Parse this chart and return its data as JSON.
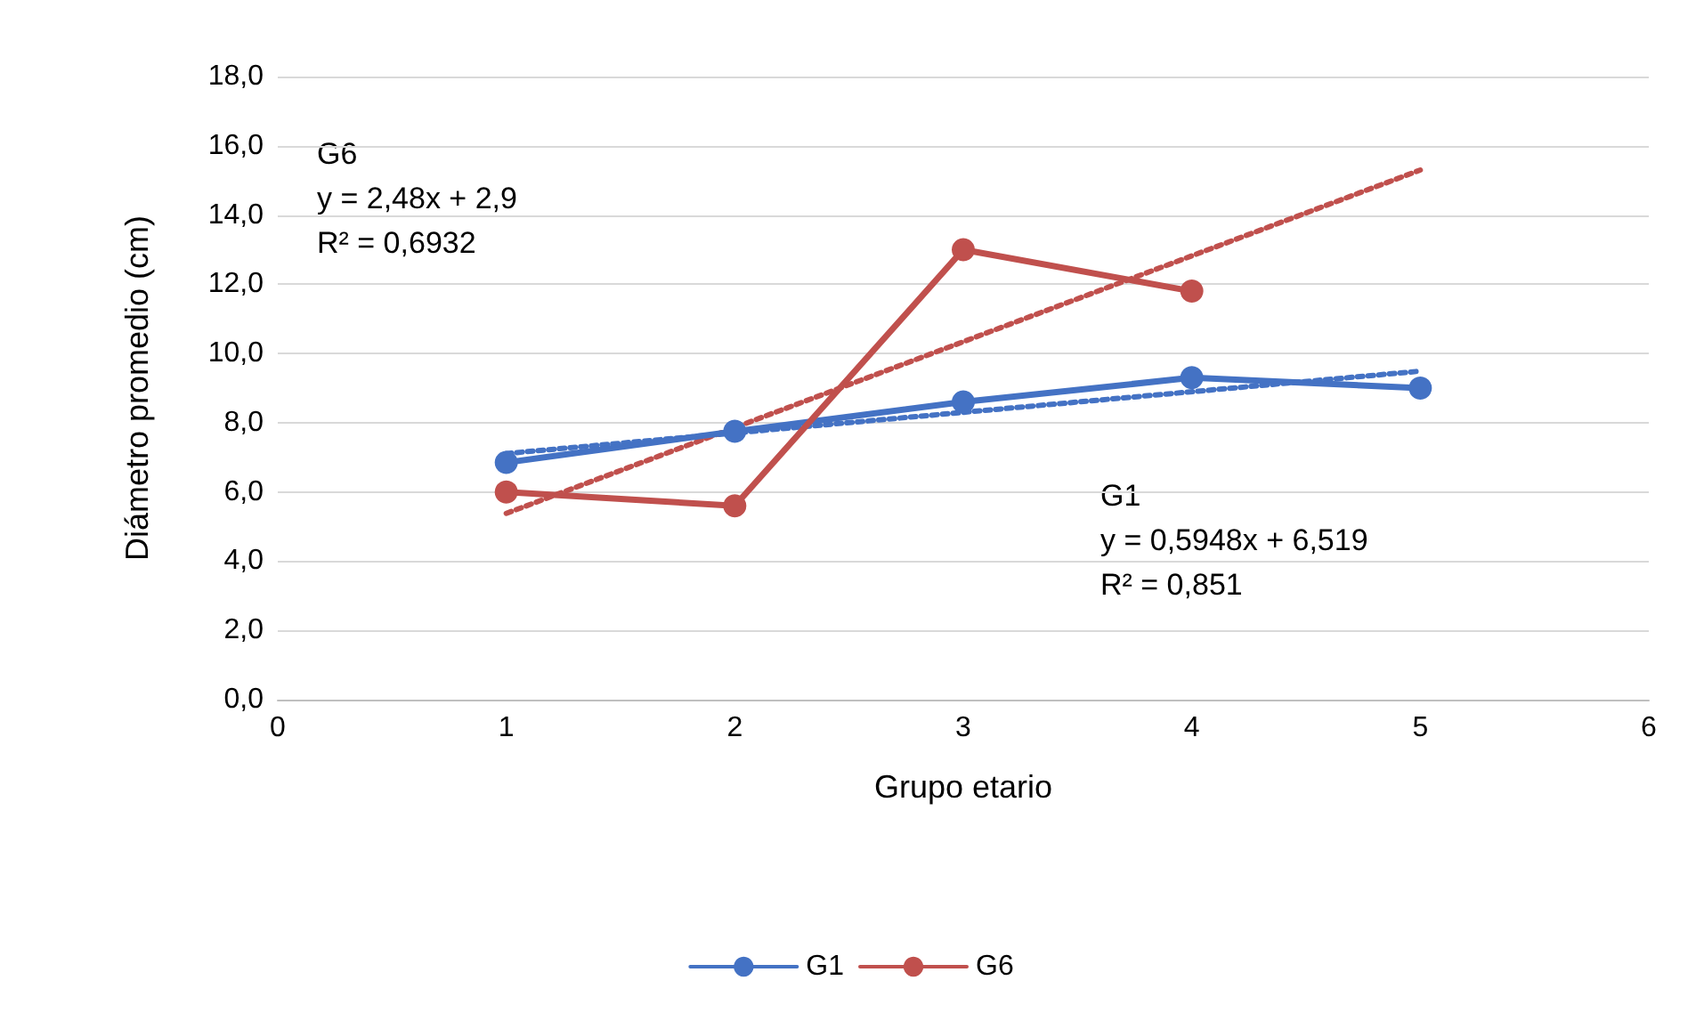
{
  "chart_data": {
    "type": "line",
    "xlabel": "Grupo etario",
    "ylabel": "Diámetro promedio (cm)",
    "xlim": [
      0,
      6
    ],
    "xticks": [
      0,
      1,
      2,
      3,
      4,
      5,
      6
    ],
    "ylim": [
      0,
      18
    ],
    "yticks": [
      {
        "value": 0,
        "label": "0,0"
      },
      {
        "value": 2,
        "label": "2,0"
      },
      {
        "value": 4,
        "label": "4,0"
      },
      {
        "value": 6,
        "label": "6,0"
      },
      {
        "value": 8,
        "label": "8,0"
      },
      {
        "value": 10,
        "label": "10,0"
      },
      {
        "value": 12,
        "label": "12,0"
      },
      {
        "value": 14,
        "label": "14,0"
      },
      {
        "value": 16,
        "label": "16,0"
      },
      {
        "value": 18,
        "label": "18,0"
      }
    ],
    "grid": "y",
    "legend": "bottom",
    "marker": "circle",
    "line_style": "solid",
    "series": [
      {
        "name": "G1",
        "color": "#4472c4",
        "x": [
          1,
          2,
          3,
          4,
          5
        ],
        "values": [
          6.85,
          7.75,
          8.6,
          9.3,
          9.0
        ]
      },
      {
        "name": "G6",
        "color": "#c0504d",
        "x": [
          1,
          2,
          3,
          4
        ],
        "values": [
          6.0,
          5.6,
          13.0,
          11.8
        ]
      },
      {
        "type": "line",
        "color": "#4472c4",
        "x": [
          1,
          5
        ],
        "values": [
          7.11,
          9.49
        ],
        "marker": "none",
        "line_style": "dotted"
      },
      {
        "type": "line",
        "color": "#c0504d",
        "x": [
          1,
          5
        ],
        "values": [
          5.38,
          15.3
        ],
        "marker": "none",
        "line_style": "dotted"
      }
    ],
    "annotations": [
      "G6",
      "y = 2,48x + 2,9",
      "R² = 0,6932",
      "G1",
      "y = 0,5948x + 6,519",
      "R² = 0,851"
    ]
  }
}
